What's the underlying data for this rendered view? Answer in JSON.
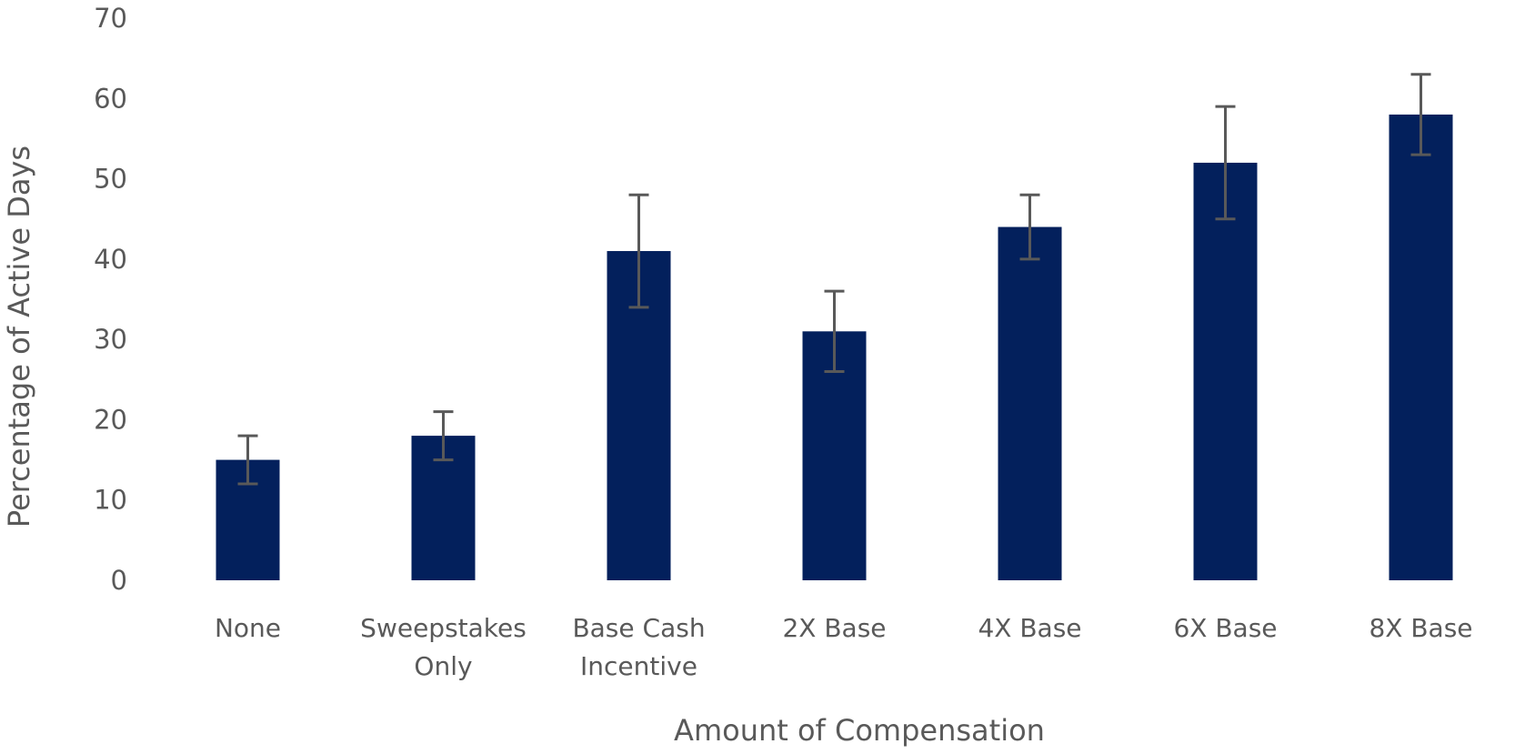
{
  "chart_data": {
    "type": "bar",
    "title": "",
    "xlabel": "Amount of Compensation",
    "ylabel": "Percentage of Active Days",
    "ylim": [
      0,
      70
    ],
    "yticks": [
      0,
      10,
      20,
      30,
      40,
      50,
      60,
      70
    ],
    "categories": [
      [
        "None"
      ],
      [
        "Sweepstakes",
        "Only"
      ],
      [
        "Base Cash",
        "Incentive"
      ],
      [
        "2X Base"
      ],
      [
        "4X Base"
      ],
      [
        "6X Base"
      ],
      [
        "8X Base"
      ]
    ],
    "values": [
      15,
      18,
      41,
      31,
      44,
      52,
      58
    ],
    "error_low": [
      12,
      15,
      34,
      26,
      40,
      45,
      53
    ],
    "error_high": [
      18,
      21,
      48,
      36,
      48,
      59,
      63
    ],
    "bar_color": "#03205c",
    "grid": false,
    "legend": "none"
  }
}
